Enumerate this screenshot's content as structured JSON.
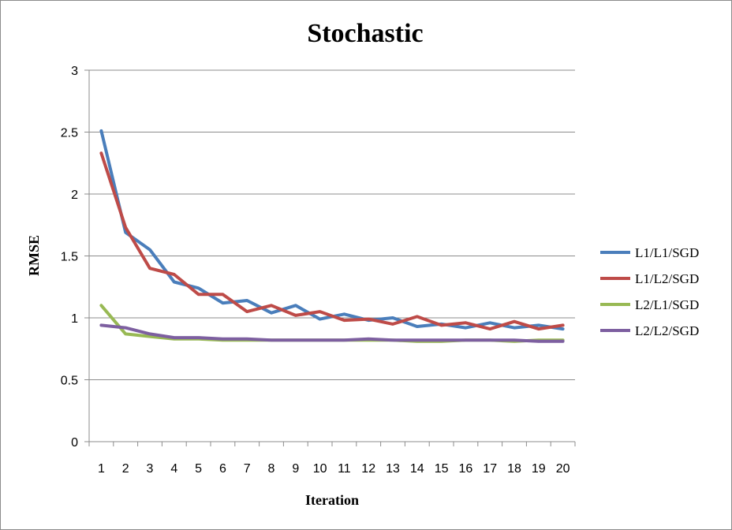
{
  "chart_data": {
    "type": "line",
    "title": "Stochastic",
    "xlabel": "Iteration",
    "ylabel": "RMSE",
    "x": [
      1,
      2,
      3,
      4,
      5,
      6,
      7,
      8,
      9,
      10,
      11,
      12,
      13,
      14,
      15,
      16,
      17,
      18,
      19,
      20
    ],
    "ylim": [
      0,
      3
    ],
    "yticks": [
      "0",
      "0.5",
      "1",
      "1.5",
      "2",
      "2.5",
      "3"
    ],
    "xticks": [
      "1",
      "2",
      "3",
      "4",
      "5",
      "6",
      "7",
      "8",
      "9",
      "10",
      "11",
      "12",
      "13",
      "14",
      "15",
      "16",
      "17",
      "18",
      "19",
      "20"
    ],
    "grid": "horizontal",
    "legend_position": "right",
    "series": [
      {
        "name": "L1/L1/SGD",
        "color": "#4a7ebb",
        "values": [
          2.51,
          1.69,
          1.55,
          1.29,
          1.24,
          1.12,
          1.14,
          1.04,
          1.1,
          0.99,
          1.03,
          0.98,
          1.0,
          0.93,
          0.95,
          0.92,
          0.96,
          0.92,
          0.94,
          0.91
        ]
      },
      {
        "name": "L1/L2/SGD",
        "color": "#be4b48",
        "values": [
          2.33,
          1.73,
          1.4,
          1.35,
          1.19,
          1.19,
          1.05,
          1.1,
          1.02,
          1.05,
          0.98,
          0.99,
          0.95,
          1.01,
          0.94,
          0.96,
          0.91,
          0.97,
          0.91,
          0.94
        ]
      },
      {
        "name": "L2/L1/SGD",
        "color": "#98b954",
        "values": [
          1.1,
          0.87,
          0.85,
          0.83,
          0.83,
          0.82,
          0.82,
          0.82,
          0.82,
          0.82,
          0.82,
          0.82,
          0.82,
          0.81,
          0.81,
          0.82,
          0.82,
          0.81,
          0.82,
          0.82
        ]
      },
      {
        "name": "L2/L2/SGD",
        "color": "#7d5fa0",
        "values": [
          0.94,
          0.92,
          0.87,
          0.84,
          0.84,
          0.83,
          0.83,
          0.82,
          0.82,
          0.82,
          0.82,
          0.83,
          0.82,
          0.82,
          0.82,
          0.82,
          0.82,
          0.82,
          0.81,
          0.81
        ]
      }
    ]
  }
}
